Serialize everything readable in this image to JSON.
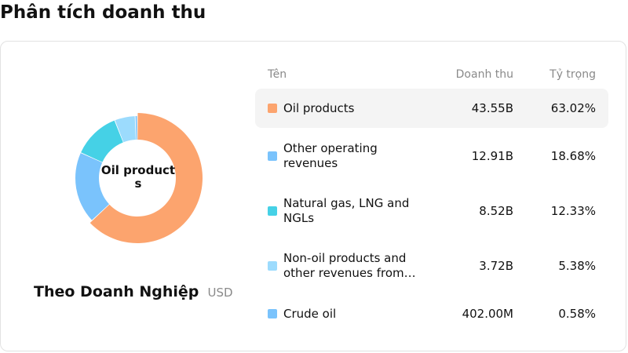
{
  "header": {
    "title": "Phân tích doanh thu"
  },
  "table": {
    "col_name": "Tên",
    "col_revenue": "Doanh thu",
    "col_share": "Tỷ trọng",
    "rows": [
      {
        "name": "Oil products",
        "revenue": "43.55B",
        "share": "63.02%",
        "color": "#FCA46E"
      },
      {
        "name": "Other operating revenues",
        "revenue": "12.91B",
        "share": "18.68%",
        "color": "#7AC3FC"
      },
      {
        "name": "Natural gas, LNG and NGLs",
        "revenue": "8.52B",
        "share": "12.33%",
        "color": "#45D1E6"
      },
      {
        "name": "Non-oil products and other revenues from…",
        "revenue": "3.72B",
        "share": "5.38%",
        "color": "#9CDBFD"
      },
      {
        "name": "Crude oil",
        "revenue": "402.00M",
        "share": "0.58%",
        "color": "#7AC3FC"
      }
    ]
  },
  "chart_data": {
    "type": "pie",
    "center_label": "Oil products",
    "subtitle": "Theo Doanh Nghiệp",
    "unit": "USD",
    "categories": [
      "Oil products",
      "Other operating revenues",
      "Natural gas, LNG and NGLs",
      "Non-oil products and other revenues from…",
      "Crude oil"
    ],
    "values": [
      63.02,
      18.68,
      12.33,
      5.38,
      0.58
    ],
    "colors": [
      "#FCA46E",
      "#7AC3FC",
      "#45D1E6",
      "#9CDBFD",
      "#7AC3FC"
    ],
    "highlighted_index": 0
  }
}
